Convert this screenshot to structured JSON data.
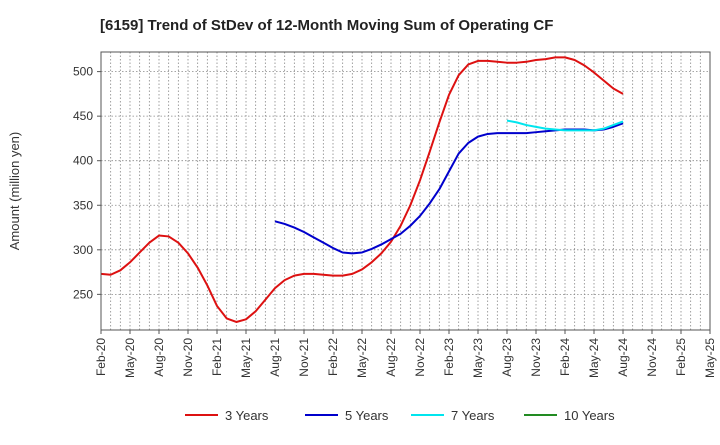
{
  "chart_data": {
    "type": "line",
    "title": "[6159]  Trend of StDev of 12-Month Moving Sum of Operating CF",
    "ylabel": "Amount (million yen)",
    "xlabel": "",
    "ylim": [
      210,
      522
    ],
    "yticks": [
      250,
      300,
      350,
      400,
      450,
      500
    ],
    "x_categories": [
      "Feb-20",
      "May-20",
      "Aug-20",
      "Nov-20",
      "Feb-21",
      "May-21",
      "Aug-21",
      "Nov-21",
      "Feb-22",
      "May-22",
      "Aug-22",
      "Nov-22",
      "Feb-23",
      "May-23",
      "Aug-23",
      "Nov-23",
      "Feb-24",
      "May-24",
      "Aug-24",
      "Nov-24",
      "Feb-25",
      "May-25"
    ],
    "grid": true,
    "legend_position": "bottom",
    "series": [
      {
        "name": "3 Years",
        "color": "#dd1111",
        "points": [
          [
            0,
            273
          ],
          [
            1,
            272
          ],
          [
            2,
            277
          ],
          [
            3,
            286
          ],
          [
            4,
            297
          ],
          [
            5,
            308
          ],
          [
            6,
            316
          ],
          [
            7,
            315
          ],
          [
            8,
            308
          ],
          [
            9,
            296
          ],
          [
            10,
            280
          ],
          [
            11,
            260
          ],
          [
            12,
            237
          ],
          [
            13,
            223
          ],
          [
            14,
            219
          ],
          [
            15,
            222
          ],
          [
            16,
            231
          ],
          [
            17,
            244
          ],
          [
            18,
            257
          ],
          [
            19,
            266
          ],
          [
            20,
            271
          ],
          [
            21,
            273
          ],
          [
            22,
            273
          ],
          [
            23,
            272
          ],
          [
            24,
            271
          ],
          [
            25,
            271
          ],
          [
            26,
            273
          ],
          [
            27,
            278
          ],
          [
            28,
            286
          ],
          [
            29,
            296
          ],
          [
            30,
            309
          ],
          [
            31,
            327
          ],
          [
            32,
            350
          ],
          [
            33,
            378
          ],
          [
            34,
            410
          ],
          [
            35,
            443
          ],
          [
            36,
            474
          ],
          [
            37,
            496
          ],
          [
            38,
            508
          ],
          [
            39,
            512
          ],
          [
            40,
            512
          ],
          [
            41,
            511
          ],
          [
            42,
            510
          ],
          [
            43,
            510
          ],
          [
            44,
            511
          ],
          [
            45,
            513
          ],
          [
            46,
            514
          ],
          [
            47,
            516
          ],
          [
            48,
            516
          ],
          [
            49,
            513
          ],
          [
            50,
            507
          ],
          [
            51,
            499
          ],
          [
            52,
            490
          ],
          [
            53,
            481
          ],
          [
            54,
            475
          ]
        ]
      },
      {
        "name": "5 Years",
        "color": "#0000cc",
        "points": [
          [
            18,
            332
          ],
          [
            19,
            329
          ],
          [
            20,
            325
          ],
          [
            21,
            320
          ],
          [
            22,
            314
          ],
          [
            23,
            308
          ],
          [
            24,
            302
          ],
          [
            25,
            297
          ],
          [
            26,
            296
          ],
          [
            27,
            297
          ],
          [
            28,
            301
          ],
          [
            29,
            306
          ],
          [
            30,
            312
          ],
          [
            31,
            318
          ],
          [
            32,
            327
          ],
          [
            33,
            338
          ],
          [
            34,
            352
          ],
          [
            35,
            368
          ],
          [
            36,
            388
          ],
          [
            37,
            408
          ],
          [
            38,
            420
          ],
          [
            39,
            427
          ],
          [
            40,
            430
          ],
          [
            41,
            431
          ],
          [
            42,
            431
          ],
          [
            43,
            431
          ],
          [
            44,
            431
          ],
          [
            45,
            432
          ],
          [
            46,
            433
          ],
          [
            47,
            434
          ],
          [
            48,
            435
          ],
          [
            49,
            435
          ],
          [
            50,
            435
          ],
          [
            51,
            434
          ],
          [
            52,
            435
          ],
          [
            53,
            438
          ],
          [
            54,
            442
          ]
        ]
      },
      {
        "name": "7 Years",
        "color": "#00e5ee",
        "points": [
          [
            42,
            445
          ],
          [
            43,
            443
          ],
          [
            44,
            440
          ],
          [
            45,
            438
          ],
          [
            46,
            436
          ],
          [
            47,
            435
          ],
          [
            48,
            434
          ],
          [
            49,
            434
          ],
          [
            50,
            434
          ],
          [
            51,
            434
          ],
          [
            52,
            436
          ],
          [
            53,
            440
          ],
          [
            54,
            444
          ]
        ]
      },
      {
        "name": "10 Years",
        "color": "#228b22",
        "points": []
      }
    ]
  }
}
